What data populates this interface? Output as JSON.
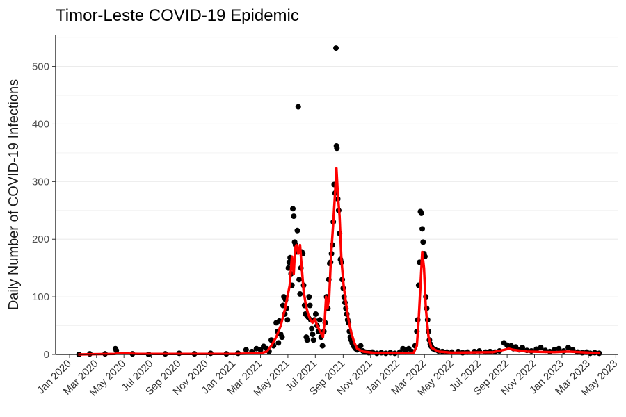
{
  "chart_data": {
    "type": "scatter",
    "title": "Timor-Leste COVID-19 Epidemic",
    "xlabel": "",
    "ylabel": "Daily Number of COVID-19 Infections",
    "xlim": [
      "2019-12-01",
      "2023-05-05"
    ],
    "ylim": [
      0,
      555
    ],
    "grid": "horizontal",
    "colors": {
      "points": "#000000",
      "smooth": "#ff0000",
      "grid": "#ebebeb",
      "axis": "#000000"
    },
    "x_ticks": [
      "2020-01-01",
      "2020-03-01",
      "2020-05-01",
      "2020-07-01",
      "2020-09-01",
      "2020-11-01",
      "2021-01-01",
      "2021-03-01",
      "2021-05-01",
      "2021-07-01",
      "2021-09-01",
      "2021-11-01",
      "2022-01-01",
      "2022-03-01",
      "2022-05-01",
      "2022-07-01",
      "2022-09-01",
      "2022-11-01",
      "2023-01-01",
      "2023-03-01",
      "2023-05-01"
    ],
    "x_tick_labels": [
      "Jan 2020",
      "Mar 2020",
      "May 2020",
      "Jul 2020",
      "Sep 2020",
      "Nov 2020",
      "Jan 2021",
      "Mar 2021",
      "May 2021",
      "Jul 2021",
      "Sep 2021",
      "Nov 2021",
      "Jan 2022",
      "Mar 2022",
      "May 2022",
      "Jul 2022",
      "Sep 2022",
      "Nov 2022",
      "Jan 2023",
      "Mar 2023",
      "May 2023"
    ],
    "y_ticks": [
      0,
      100,
      200,
      300,
      400,
      500
    ],
    "y_tick_labels": [
      "0",
      "100",
      "200",
      "300",
      "400",
      "500"
    ],
    "series": [
      {
        "type": "scatter",
        "points": [
          [
            "2020-01-22",
            0
          ],
          [
            "2020-02-15",
            1
          ],
          [
            "2020-03-20",
            1
          ],
          [
            "2020-04-12",
            10
          ],
          [
            "2020-04-14",
            7
          ],
          [
            "2020-05-20",
            1
          ],
          [
            "2020-06-25",
            0
          ],
          [
            "2020-08-01",
            1
          ],
          [
            "2020-09-01",
            2
          ],
          [
            "2020-10-05",
            1
          ],
          [
            "2020-11-10",
            2
          ],
          [
            "2020-12-15",
            1
          ],
          [
            "2021-01-10",
            2
          ],
          [
            "2021-01-28",
            8
          ],
          [
            "2021-02-10",
            5
          ],
          [
            "2021-02-20",
            10
          ],
          [
            "2021-03-01",
            8
          ],
          [
            "2021-03-08",
            14
          ],
          [
            "2021-03-15",
            10
          ],
          [
            "2021-03-20",
            5
          ],
          [
            "2021-03-25",
            25
          ],
          [
            "2021-03-30",
            15
          ],
          [
            "2021-04-05",
            55
          ],
          [
            "2021-04-08",
            40
          ],
          [
            "2021-04-10",
            20
          ],
          [
            "2021-04-12",
            58
          ],
          [
            "2021-04-15",
            35
          ],
          [
            "2021-04-18",
            30
          ],
          [
            "2021-04-20",
            85
          ],
          [
            "2021-04-22",
            100
          ],
          [
            "2021-04-24",
            70
          ],
          [
            "2021-04-26",
            95
          ],
          [
            "2021-04-28",
            80
          ],
          [
            "2021-04-30",
            60
          ],
          [
            "2021-05-02",
            150
          ],
          [
            "2021-05-04",
            160
          ],
          [
            "2021-05-06",
            168
          ],
          [
            "2021-05-08",
            140
          ],
          [
            "2021-05-10",
            120
          ],
          [
            "2021-05-12",
            253
          ],
          [
            "2021-05-14",
            240
          ],
          [
            "2021-05-16",
            195
          ],
          [
            "2021-05-18",
            190
          ],
          [
            "2021-05-20",
            178
          ],
          [
            "2021-05-22",
            215
          ],
          [
            "2021-05-24",
            430
          ],
          [
            "2021-05-26",
            130
          ],
          [
            "2021-05-28",
            105
          ],
          [
            "2021-05-30",
            150
          ],
          [
            "2021-06-01",
            178
          ],
          [
            "2021-06-03",
            175
          ],
          [
            "2021-06-05",
            120
          ],
          [
            "2021-06-07",
            85
          ],
          [
            "2021-06-09",
            70
          ],
          [
            "2021-06-11",
            30
          ],
          [
            "2021-06-13",
            25
          ],
          [
            "2021-06-15",
            65
          ],
          [
            "2021-06-17",
            100
          ],
          [
            "2021-06-19",
            85
          ],
          [
            "2021-06-21",
            60
          ],
          [
            "2021-06-23",
            45
          ],
          [
            "2021-06-25",
            35
          ],
          [
            "2021-06-27",
            25
          ],
          [
            "2021-06-29",
            60
          ],
          [
            "2021-07-02",
            70
          ],
          [
            "2021-07-05",
            50
          ],
          [
            "2021-07-08",
            40
          ],
          [
            "2021-07-11",
            60
          ],
          [
            "2021-07-14",
            30
          ],
          [
            "2021-07-17",
            15
          ],
          [
            "2021-07-20",
            40
          ],
          [
            "2021-07-23",
            55
          ],
          [
            "2021-07-26",
            100
          ],
          [
            "2021-07-29",
            80
          ],
          [
            "2021-07-31",
            130
          ],
          [
            "2021-08-02",
            158
          ],
          [
            "2021-08-04",
            160
          ],
          [
            "2021-08-06",
            175
          ],
          [
            "2021-08-08",
            190
          ],
          [
            "2021-08-10",
            230
          ],
          [
            "2021-08-12",
            295
          ],
          [
            "2021-08-14",
            280
          ],
          [
            "2021-08-16",
            532
          ],
          [
            "2021-08-17",
            362
          ],
          [
            "2021-08-18",
            358
          ],
          [
            "2021-08-20",
            270
          ],
          [
            "2021-08-22",
            250
          ],
          [
            "2021-08-24",
            210
          ],
          [
            "2021-08-26",
            165
          ],
          [
            "2021-08-28",
            160
          ],
          [
            "2021-08-30",
            130
          ],
          [
            "2021-09-01",
            115
          ],
          [
            "2021-09-03",
            100
          ],
          [
            "2021-09-05",
            90
          ],
          [
            "2021-09-07",
            80
          ],
          [
            "2021-09-09",
            70
          ],
          [
            "2021-09-11",
            60
          ],
          [
            "2021-09-13",
            55
          ],
          [
            "2021-09-15",
            40
          ],
          [
            "2021-09-17",
            30
          ],
          [
            "2021-09-19",
            25
          ],
          [
            "2021-09-21",
            20
          ],
          [
            "2021-09-23",
            18
          ],
          [
            "2021-09-25",
            14
          ],
          [
            "2021-09-27",
            12
          ],
          [
            "2021-09-29",
            10
          ],
          [
            "2021-10-02",
            8
          ],
          [
            "2021-10-06",
            12
          ],
          [
            "2021-10-10",
            15
          ],
          [
            "2021-10-15",
            6
          ],
          [
            "2021-10-20",
            4
          ],
          [
            "2021-10-28",
            3
          ],
          [
            "2021-11-05",
            4
          ],
          [
            "2021-11-15",
            2
          ],
          [
            "2021-11-25",
            3
          ],
          [
            "2021-12-05",
            2
          ],
          [
            "2021-12-15",
            3
          ],
          [
            "2021-12-25",
            2
          ],
          [
            "2022-01-05",
            4
          ],
          [
            "2022-01-12",
            10
          ],
          [
            "2022-01-18",
            4
          ],
          [
            "2022-01-25",
            10
          ],
          [
            "2022-02-01",
            5
          ],
          [
            "2022-02-08",
            15
          ],
          [
            "2022-02-12",
            40
          ],
          [
            "2022-02-14",
            60
          ],
          [
            "2022-02-16",
            120
          ],
          [
            "2022-02-18",
            160
          ],
          [
            "2022-02-20",
            248
          ],
          [
            "2022-02-22",
            245
          ],
          [
            "2022-02-24",
            218
          ],
          [
            "2022-02-26",
            195
          ],
          [
            "2022-02-28",
            175
          ],
          [
            "2022-03-02",
            170
          ],
          [
            "2022-03-04",
            100
          ],
          [
            "2022-03-06",
            80
          ],
          [
            "2022-03-08",
            60
          ],
          [
            "2022-03-10",
            40
          ],
          [
            "2022-03-12",
            25
          ],
          [
            "2022-03-14",
            18
          ],
          [
            "2022-03-16",
            14
          ],
          [
            "2022-03-20",
            10
          ],
          [
            "2022-03-25",
            8
          ],
          [
            "2022-04-01",
            6
          ],
          [
            "2022-04-10",
            5
          ],
          [
            "2022-04-20",
            4
          ],
          [
            "2022-05-01",
            4
          ],
          [
            "2022-05-15",
            5
          ],
          [
            "2022-05-25",
            3
          ],
          [
            "2022-06-05",
            4
          ],
          [
            "2022-06-20",
            5
          ],
          [
            "2022-07-01",
            6
          ],
          [
            "2022-07-15",
            4
          ],
          [
            "2022-07-25",
            5
          ],
          [
            "2022-08-05",
            4
          ],
          [
            "2022-08-15",
            6
          ],
          [
            "2022-08-25",
            20
          ],
          [
            "2022-09-01",
            16
          ],
          [
            "2022-09-05",
            12
          ],
          [
            "2022-09-10",
            15
          ],
          [
            "2022-09-15",
            10
          ],
          [
            "2022-09-20",
            13
          ],
          [
            "2022-09-28",
            8
          ],
          [
            "2022-10-05",
            12
          ],
          [
            "2022-10-15",
            7
          ],
          [
            "2022-10-25",
            6
          ],
          [
            "2022-11-05",
            9
          ],
          [
            "2022-11-15",
            12
          ],
          [
            "2022-11-25",
            7
          ],
          [
            "2022-12-05",
            5
          ],
          [
            "2022-12-15",
            8
          ],
          [
            "2022-12-25",
            10
          ],
          [
            "2023-01-05",
            6
          ],
          [
            "2023-01-15",
            12
          ],
          [
            "2023-01-25",
            8
          ],
          [
            "2023-02-05",
            4
          ],
          [
            "2023-02-15",
            3
          ],
          [
            "2023-02-25",
            4
          ],
          [
            "2023-03-05",
            2
          ],
          [
            "2023-03-15",
            3
          ],
          [
            "2023-03-25",
            2
          ]
        ]
      },
      {
        "type": "line",
        "points": [
          [
            "2020-01-22",
            0
          ],
          [
            "2020-04-10",
            1
          ],
          [
            "2020-04-20",
            2
          ],
          [
            "2020-06-01",
            1
          ],
          [
            "2021-01-01",
            1
          ],
          [
            "2021-03-01",
            2
          ],
          [
            "2021-03-15",
            5
          ],
          [
            "2021-03-25",
            15
          ],
          [
            "2021-04-05",
            30
          ],
          [
            "2021-04-15",
            50
          ],
          [
            "2021-04-25",
            80
          ],
          [
            "2021-05-05",
            120
          ],
          [
            "2021-05-10",
            170
          ],
          [
            "2021-05-14",
            140
          ],
          [
            "2021-05-17",
            185
          ],
          [
            "2021-05-20",
            190
          ],
          [
            "2021-05-24",
            175
          ],
          [
            "2021-05-28",
            190
          ],
          [
            "2021-06-01",
            150
          ],
          [
            "2021-06-05",
            110
          ],
          [
            "2021-06-10",
            85
          ],
          [
            "2021-06-15",
            70
          ],
          [
            "2021-06-20",
            60
          ],
          [
            "2021-06-25",
            55
          ],
          [
            "2021-06-30",
            62
          ],
          [
            "2021-07-05",
            50
          ],
          [
            "2021-07-12",
            40
          ],
          [
            "2021-07-18",
            30
          ],
          [
            "2021-07-22",
            60
          ],
          [
            "2021-07-25",
            100
          ],
          [
            "2021-07-28",
            80
          ],
          [
            "2021-08-01",
            100
          ],
          [
            "2021-08-05",
            170
          ],
          [
            "2021-08-10",
            230
          ],
          [
            "2021-08-14",
            280
          ],
          [
            "2021-08-17",
            323
          ],
          [
            "2021-08-20",
            280
          ],
          [
            "2021-08-24",
            240
          ],
          [
            "2021-08-28",
            165
          ],
          [
            "2021-09-02",
            120
          ],
          [
            "2021-09-08",
            85
          ],
          [
            "2021-09-14",
            55
          ],
          [
            "2021-09-20",
            35
          ],
          [
            "2021-09-26",
            20
          ],
          [
            "2021-10-02",
            10
          ],
          [
            "2021-10-15",
            5
          ],
          [
            "2021-11-15",
            2
          ],
          [
            "2022-01-15",
            2
          ],
          [
            "2022-02-05",
            3
          ],
          [
            "2022-02-12",
            15
          ],
          [
            "2022-02-16",
            60
          ],
          [
            "2022-02-20",
            120
          ],
          [
            "2022-02-24",
            178
          ],
          [
            "2022-02-28",
            150
          ],
          [
            "2022-03-04",
            80
          ],
          [
            "2022-03-10",
            30
          ],
          [
            "2022-03-16",
            12
          ],
          [
            "2022-04-01",
            5
          ],
          [
            "2022-05-01",
            3
          ],
          [
            "2022-08-01",
            4
          ],
          [
            "2022-08-25",
            8
          ],
          [
            "2022-09-05",
            10
          ],
          [
            "2022-09-15",
            8
          ],
          [
            "2022-10-15",
            5
          ],
          [
            "2022-12-15",
            4
          ],
          [
            "2023-01-15",
            5
          ],
          [
            "2023-03-25",
            2
          ]
        ]
      }
    ]
  }
}
